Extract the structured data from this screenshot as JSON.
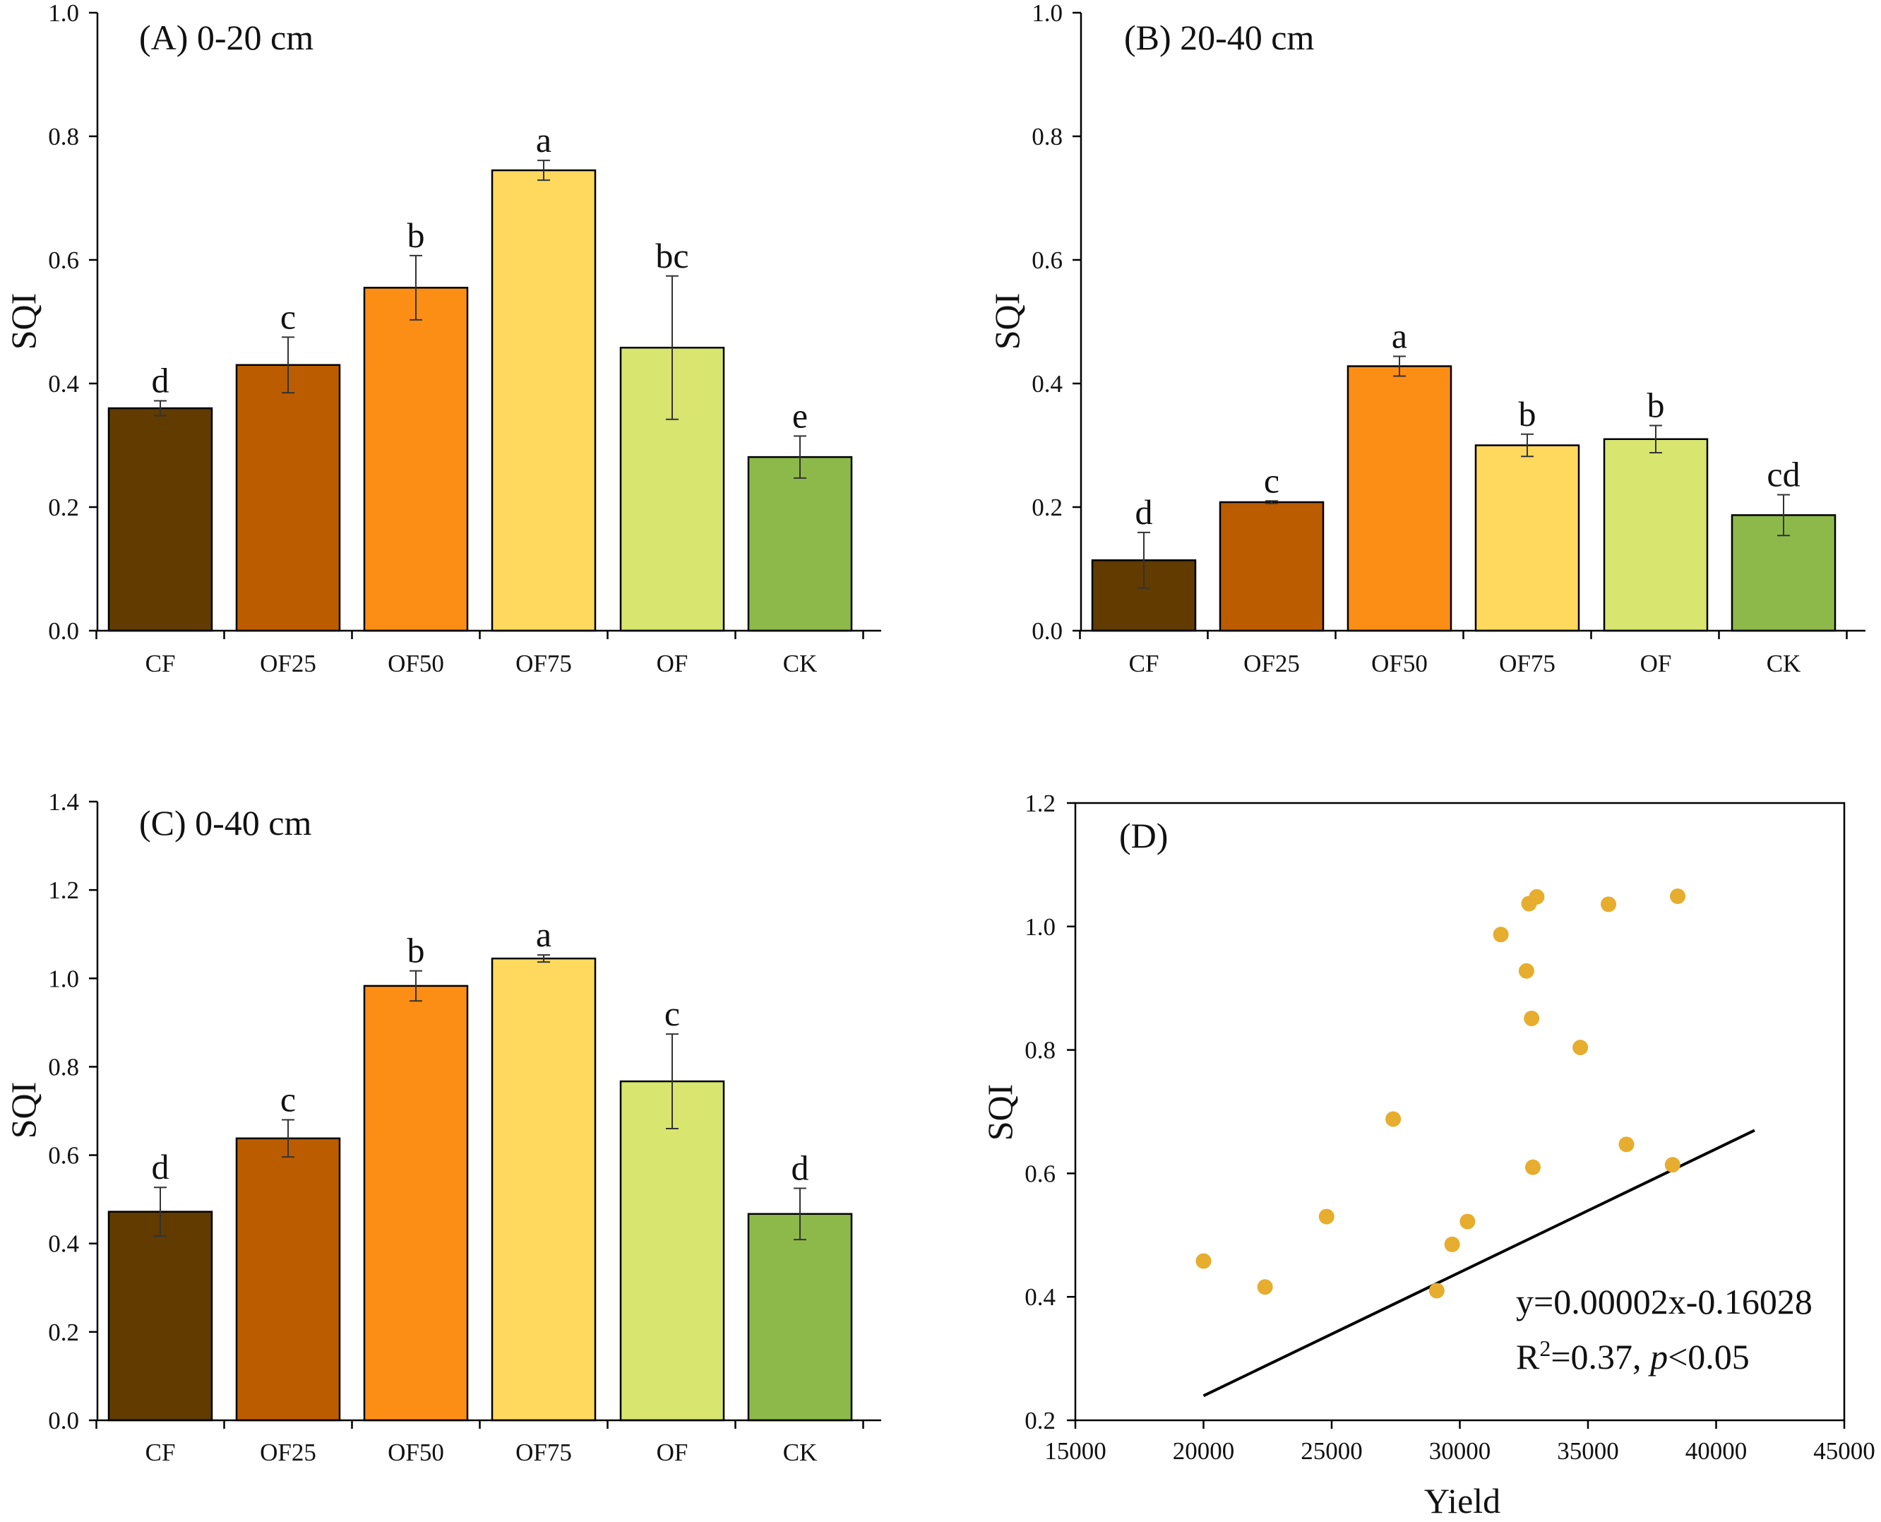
{
  "chart_data": [
    {
      "id": "A",
      "type": "bar",
      "title": "(A) 0-20 cm",
      "xlabel": "",
      "ylabel": "SQI",
      "ylim": [
        0,
        1.0
      ],
      "yticks": [
        "0.0",
        "0.2",
        "0.4",
        "0.6",
        "0.8",
        "1.0"
      ],
      "categories": [
        "CF",
        "OF25",
        "OF50",
        "OF75",
        "OF",
        "CK"
      ],
      "values": [
        0.36,
        0.43,
        0.555,
        0.745,
        0.458,
        0.281
      ],
      "errors": [
        0.012,
        0.045,
        0.052,
        0.016,
        0.116,
        0.034
      ],
      "letters": [
        "d",
        "c",
        "b",
        "a",
        "bc",
        "e"
      ],
      "colors": [
        "#613b00",
        "#bc5c00",
        "#fd8e15",
        "#ffd95e",
        "#d8e56f",
        "#8db94a"
      ]
    },
    {
      "id": "B",
      "type": "bar",
      "title": "(B) 20-40 cm",
      "xlabel": "",
      "ylabel": "SQI",
      "ylim": [
        0,
        1.0
      ],
      "yticks": [
        "0.0",
        "0.2",
        "0.4",
        "0.6",
        "0.8",
        "1.0"
      ],
      "categories": [
        "CF",
        "OF25",
        "OF50",
        "OF75",
        "OF",
        "CK"
      ],
      "values": [
        0.114,
        0.208,
        0.428,
        0.3,
        0.31,
        0.187
      ],
      "errors": [
        0.045,
        0.002,
        0.016,
        0.018,
        0.022,
        0.033
      ],
      "letters": [
        "d",
        "c",
        "a",
        "b",
        "b",
        "cd"
      ],
      "colors": [
        "#613b00",
        "#bc5c00",
        "#fd8e15",
        "#ffd95e",
        "#d8e56f",
        "#8db94a"
      ]
    },
    {
      "id": "C",
      "type": "bar",
      "title": "(C) 0-40 cm",
      "xlabel": "",
      "ylabel": "SQI",
      "ylim": [
        0,
        1.4
      ],
      "yticks": [
        "0.0",
        "0.2",
        "0.4",
        "0.6",
        "0.8",
        "1.0",
        "1.2",
        "1.4"
      ],
      "categories": [
        "CF",
        "OF25",
        "OF50",
        "OF75",
        "OF",
        "CK"
      ],
      "values": [
        0.472,
        0.638,
        0.983,
        1.045,
        0.767,
        0.467
      ],
      "errors": [
        0.055,
        0.042,
        0.034,
        0.008,
        0.107,
        0.058
      ],
      "letters": [
        "d",
        "c",
        "b",
        "a",
        "c",
        "d"
      ],
      "colors": [
        "#613b00",
        "#bc5c00",
        "#fd8e15",
        "#ffd95e",
        "#d8e56f",
        "#8db94a"
      ]
    },
    {
      "id": "D",
      "type": "scatter",
      "title": "(D)",
      "xlabel": "Yield",
      "ylabel": "SQI",
      "xlim": [
        15000,
        45000
      ],
      "ylim": [
        0.2,
        1.2
      ],
      "xticks": [
        "15000",
        "20000",
        "25000",
        "30000",
        "35000",
        "40000",
        "45000"
      ],
      "yticks": [
        "0.2",
        "0.4",
        "0.6",
        "0.8",
        "1.0",
        "1.2"
      ],
      "point_color": "#e6ad2e",
      "x": [
        20000,
        22400,
        24800,
        27400,
        29100,
        29700,
        30300,
        31600,
        32600,
        32700,
        32800,
        32850,
        33000,
        34700,
        35800,
        36500,
        38300,
        38500
      ],
      "y": [
        0.458,
        0.416,
        0.53,
        0.688,
        0.41,
        0.485,
        0.522,
        0.987,
        0.928,
        1.037,
        0.851,
        0.61,
        1.048,
        0.804,
        1.036,
        0.647,
        0.614,
        1.049
      ],
      "fit": {
        "x0": 20000,
        "x1": 41500,
        "slope": 2e-05,
        "intercept": -0.16028
      },
      "equation": "y=0.00002x-0.16028",
      "r2_prefix": "R",
      "r2_exp": "2",
      "r2_value": "=0.37, ",
      "p_label": "p",
      "p_value": "<0.05"
    }
  ]
}
